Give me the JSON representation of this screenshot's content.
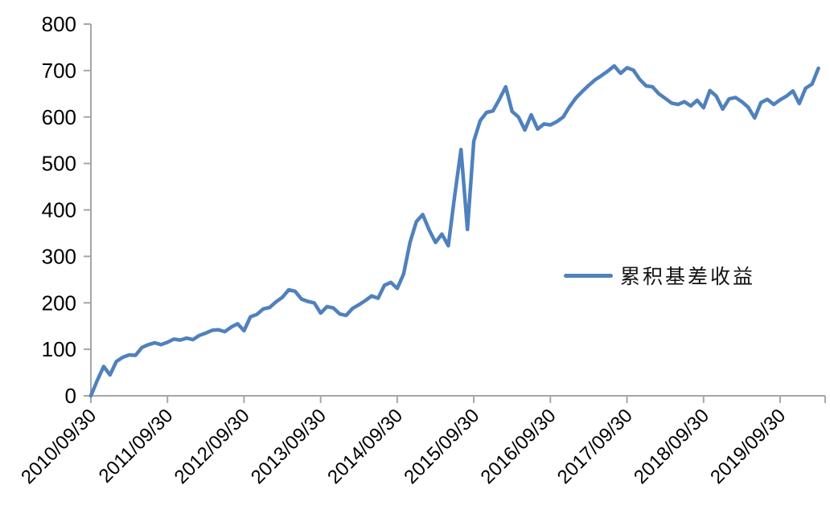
{
  "chart_data": {
    "type": "line",
    "title": "",
    "xlabel": "",
    "ylabel": "",
    "ylim": [
      0,
      800
    ],
    "y_ticks": [
      0,
      100,
      200,
      300,
      400,
      500,
      600,
      700,
      800
    ],
    "x_tick_labels": [
      "2010/09/30",
      "2011/09/30",
      "2012/09/30",
      "2013/09/30",
      "2014/09/30",
      "2015/09/30",
      "2016/09/30",
      "2017/09/30",
      "2018/09/30",
      "2019/09/30"
    ],
    "points_per_year": 12,
    "grid": false,
    "legend_position": "middle-right",
    "series": [
      {
        "name": "累积基差收益",
        "color": "#4F81BD",
        "start": "2010/09/30",
        "frequency": "monthly",
        "values": [
          0,
          33,
          63,
          45,
          74,
          83,
          88,
          87,
          104,
          110,
          114,
          110,
          115,
          122,
          120,
          124,
          121,
          130,
          135,
          141,
          142,
          138,
          148,
          155,
          140,
          170,
          175,
          187,
          190,
          202,
          212,
          228,
          225,
          208,
          203,
          200,
          178,
          192,
          189,
          176,
          173,
          188,
          196,
          205,
          215,
          210,
          238,
          244,
          231,
          262,
          330,
          375,
          390,
          357,
          330,
          348,
          323,
          430,
          530,
          358,
          548,
          592,
          610,
          613,
          638,
          665,
          612,
          600,
          572,
          605,
          574,
          585,
          583,
          590,
          600,
          622,
          641,
          655,
          668,
          680,
          689,
          699,
          710,
          694,
          706,
          701,
          681,
          667,
          665,
          650,
          640,
          630,
          627,
          633,
          624,
          636,
          620,
          657,
          645,
          617,
          639,
          642,
          633,
          621,
          598,
          631,
          638,
          627,
          637,
          645,
          656,
          629,
          662,
          671,
          705
        ]
      }
    ],
    "colors": {
      "line": "#4F81BD",
      "axis": "#A6A6A6",
      "tick_text": "#000000"
    }
  }
}
